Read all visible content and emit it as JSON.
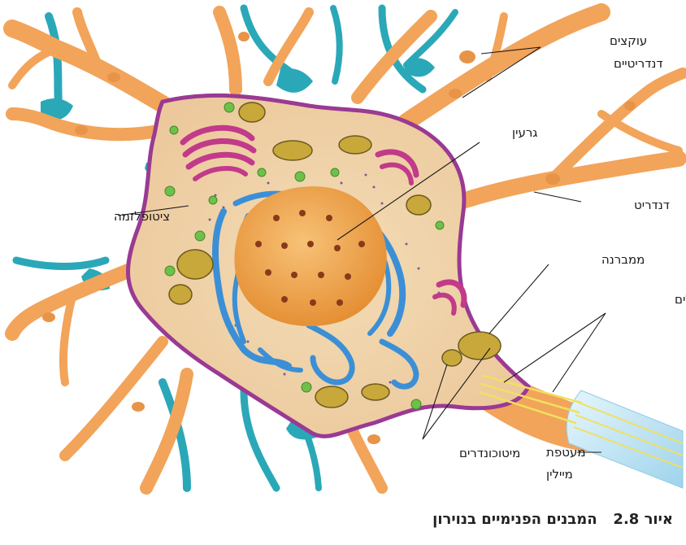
{
  "labels": {
    "dendritic_spines": [
      "עוקצים",
      "דנדריטיים"
    ],
    "nucleolus": "גרעין",
    "cytoplasm": "ציטופלזמה",
    "dendrite": "דנדריט",
    "membrane": "ממברנה",
    "microtubules": "מיקרוטובולים",
    "mitochondria": "מיטוכונדרים",
    "myelin_sheath": [
      "מעטפת",
      "מיילין"
    ]
  },
  "caption": {
    "figure_number": "איור 2.8",
    "title": "המבנים הפנימיים בנוירון"
  },
  "colors": {
    "dendrite": "#f2a45a",
    "dendrite_dark": "#e08a3c",
    "cytoplasm": "#f0d3a8",
    "membrane": "#9a3a93",
    "nucleus": "#f0a040",
    "er": "#3b8fd6",
    "golgi": "#c23a8a",
    "mito": "#c8a83a",
    "teal_fiber": "#2aa8b8",
    "myelin": "#bfe4f4",
    "vesicle": "#6fc04a"
  }
}
